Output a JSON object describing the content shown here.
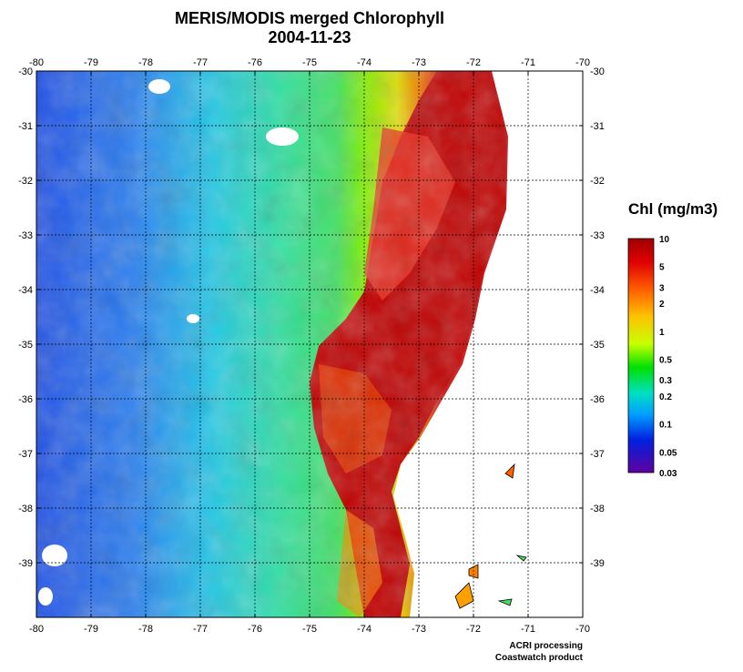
{
  "title": "MERIS/MODIS merged Chlorophyll",
  "date": "2004-11-23",
  "chart_data": {
    "type": "heatmap",
    "title": "MERIS/MODIS merged Chlorophyll",
    "subtitle": "2004-11-23",
    "xlim": [
      -80,
      -70
    ],
    "ylim": [
      -40,
      -30
    ],
    "x_ticks": [
      "-80",
      "-79",
      "-78",
      "-77",
      "-76",
      "-75",
      "-74",
      "-73",
      "-72",
      "-71",
      "-70"
    ],
    "y_ticks": [
      "-30",
      "-31",
      "-32",
      "-33",
      "-34",
      "-35",
      "-36",
      "-37",
      "-38",
      "-39"
    ],
    "grid": true,
    "colorbar": {
      "label": "Chl (mg/m3)",
      "scale": "log",
      "ticks": [
        "10",
        "5",
        "3",
        "2",
        "1",
        "0.5",
        "0.3",
        "0.2",
        "0.1",
        "0.05",
        "0.03"
      ],
      "range": [
        0.03,
        10
      ]
    }
  },
  "credit": {
    "line1": "ACRI processing",
    "line2": "Coastwatch product"
  },
  "colors": {
    "high": "#b00000",
    "mid": "#00e000",
    "low": "#0030e0",
    "min": "#6000a0",
    "land": "#ffffff"
  }
}
